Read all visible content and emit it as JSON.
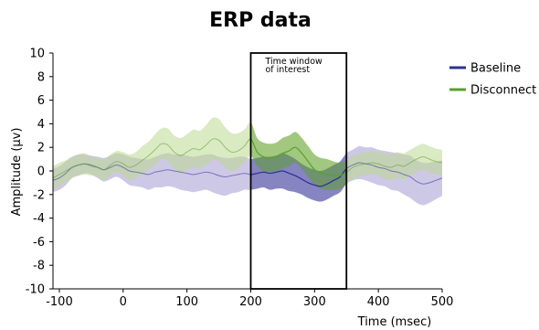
{
  "chart_data": {
    "type": "line",
    "title": "ERP data",
    "xlabel": "Time (msec)",
    "ylabel": "Amplitude (μv)",
    "xlim": [
      -110,
      500
    ],
    "ylim": [
      -10,
      10
    ],
    "xticks": [
      -100,
      0,
      100,
      200,
      300,
      400,
      500
    ],
    "yticks": [
      10,
      8,
      6,
      4,
      2,
      0,
      -2,
      -4,
      -6,
      -8,
      -10
    ],
    "legend_position": "right",
    "annotation": {
      "lines": [
        "Time window",
        "of interest"
      ],
      "window": [
        200,
        350
      ]
    },
    "x": [
      -110,
      -100,
      -90,
      -80,
      -70,
      -60,
      -50,
      -40,
      -30,
      -20,
      -10,
      0,
      10,
      20,
      30,
      40,
      50,
      60,
      70,
      80,
      90,
      100,
      110,
      120,
      130,
      140,
      150,
      160,
      170,
      180,
      190,
      200,
      210,
      220,
      230,
      240,
      250,
      260,
      270,
      280,
      290,
      300,
      310,
      320,
      330,
      340,
      350,
      360,
      370,
      380,
      390,
      400,
      410,
      420,
      430,
      440,
      450,
      460,
      470,
      480,
      490,
      500
    ],
    "series": [
      {
        "name": "Baseline",
        "color": "#2e3192",
        "band_color": "#a59ad4",
        "mean": [
          -0.8,
          -0.6,
          -0.2,
          0.3,
          0.5,
          0.6,
          0.5,
          0.3,
          0.1,
          0.3,
          0.5,
          0.3,
          0.0,
          -0.1,
          -0.2,
          -0.3,
          -0.1,
          0.0,
          0.1,
          0.0,
          -0.1,
          -0.2,
          -0.3,
          -0.2,
          -0.1,
          -0.2,
          -0.4,
          -0.5,
          -0.4,
          -0.3,
          -0.2,
          -0.3,
          -0.2,
          -0.1,
          -0.2,
          -0.1,
          0.0,
          -0.2,
          -0.4,
          -0.7,
          -1.0,
          -1.2,
          -1.3,
          -1.1,
          -0.8,
          -0.5,
          0.2,
          0.5,
          0.7,
          0.6,
          0.5,
          0.3,
          0.2,
          0.0,
          -0.1,
          -0.3,
          -0.5,
          -0.9,
          -1.1,
          -1.0,
          -0.8,
          -0.6
        ],
        "hw": [
          1.0,
          1.0,
          1.0,
          0.9,
          0.9,
          0.8,
          0.8,
          0.9,
          1.0,
          1.0,
          1.0,
          1.1,
          1.2,
          1.2,
          1.2,
          1.3,
          1.3,
          1.4,
          1.4,
          1.4,
          1.5,
          1.5,
          1.5,
          1.5,
          1.5,
          1.6,
          1.6,
          1.6,
          1.5,
          1.5,
          1.4,
          1.3,
          1.3,
          1.3,
          1.4,
          1.4,
          1.5,
          1.5,
          1.4,
          1.3,
          1.3,
          1.3,
          1.3,
          1.3,
          1.3,
          1.3,
          1.3,
          1.3,
          1.4,
          1.4,
          1.5,
          1.5,
          1.5,
          1.6,
          1.6,
          1.7,
          1.8,
          1.8,
          1.8,
          1.7,
          1.6,
          1.5
        ]
      },
      {
        "name": "Disconnect",
        "color": "#5aa02c",
        "band_color": "#bcd88f",
        "mean": [
          -0.6,
          -0.3,
          0.0,
          0.3,
          0.5,
          0.6,
          0.4,
          0.3,
          0.1,
          0.5,
          0.8,
          0.6,
          0.3,
          0.5,
          0.9,
          1.3,
          1.8,
          2.3,
          2.2,
          1.6,
          1.3,
          1.6,
          1.9,
          1.8,
          2.2,
          2.7,
          2.6,
          2.0,
          1.6,
          1.7,
          2.1,
          2.7,
          1.6,
          1.2,
          1.1,
          1.2,
          1.5,
          1.7,
          2.0,
          1.5,
          0.8,
          0.1,
          -0.2,
          -0.3,
          -0.4,
          -0.4,
          -0.1,
          0.3,
          0.5,
          0.6,
          0.7,
          0.6,
          0.4,
          0.3,
          0.5,
          0.4,
          0.7,
          1.0,
          1.2,
          1.0,
          0.8,
          0.7
        ],
        "hw": [
          1.0,
          1.0,
          0.9,
          0.9,
          0.9,
          0.9,
          0.8,
          0.8,
          0.9,
          0.9,
          0.9,
          1.0,
          1.1,
          1.1,
          1.2,
          1.2,
          1.3,
          1.3,
          1.4,
          1.4,
          1.5,
          1.5,
          1.6,
          1.6,
          1.7,
          1.8,
          1.8,
          1.7,
          1.6,
          1.5,
          1.4,
          1.4,
          1.2,
          1.2,
          1.2,
          1.2,
          1.3,
          1.3,
          1.3,
          1.3,
          1.3,
          1.3,
          1.3,
          1.3,
          1.2,
          1.1,
          1.0,
          1.0,
          1.0,
          1.0,
          1.0,
          1.0,
          1.1,
          1.1,
          1.1,
          1.1,
          1.1,
          1.1,
          1.1,
          1.1,
          1.1,
          1.1
        ]
      }
    ]
  }
}
